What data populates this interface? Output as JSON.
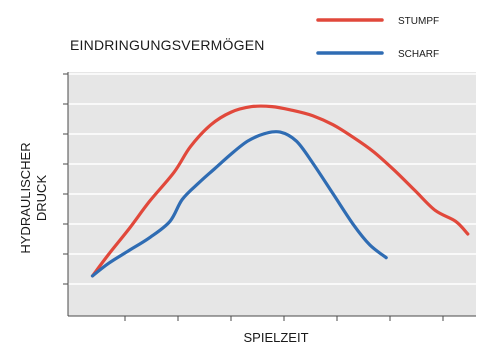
{
  "chart_data": {
    "type": "line",
    "title": "EINDRINGUNGSVERMÖGEN",
    "xlabel": "SPIELZEIT",
    "ylabel": [
      "HYDRAULISCHER",
      "DRUCK"
    ],
    "grid": true,
    "legend_position": "top-right",
    "background_color": "#e6e6e6",
    "grid_color": "#ffffff",
    "axis_color": "#4a4a4a",
    "xlim": [
      0,
      100
    ],
    "ylim": [
      0,
      100
    ],
    "series": [
      {
        "name": "STUMPF",
        "color": "#e1483b",
        "x": [
          6,
          10,
          15,
          20,
          26,
          30,
          35,
          40,
          45,
          50,
          55,
          60,
          65,
          70,
          75,
          80,
          85,
          90,
          95,
          98
        ],
        "y": [
          5,
          17,
          31,
          46,
          62,
          76,
          88,
          95,
          98,
          98,
          96,
          93,
          88,
          81,
          73,
          63,
          52,
          41,
          35,
          28
        ]
      },
      {
        "name": "SCHARF",
        "color": "#2f6cb3",
        "x": [
          6,
          10,
          15,
          20,
          25,
          28,
          32,
          36,
          40,
          44,
          48,
          52,
          56,
          60,
          65,
          70,
          74,
          78
        ],
        "y": [
          5,
          12,
          19,
          26,
          35,
          47,
          56,
          64,
          72,
          79,
          83,
          84,
          79,
          67,
          50,
          33,
          22,
          15
        ]
      }
    ]
  }
}
